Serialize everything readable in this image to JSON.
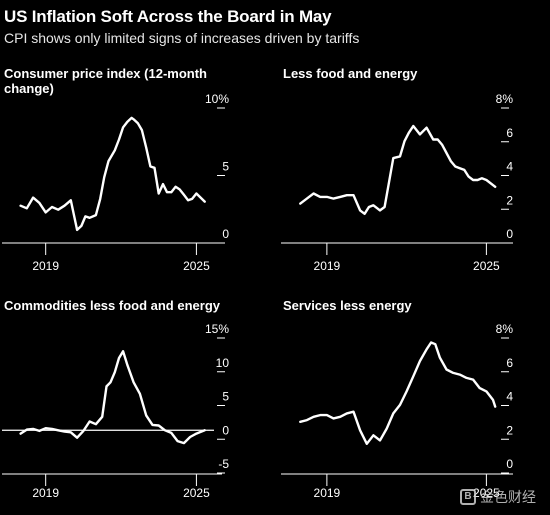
{
  "header": {
    "title": "US Inflation Soft Across the Board in May",
    "subtitle": "CPI shows only limited signs of increases driven by tariffs"
  },
  "watermark": {
    "text": "金色财经",
    "logo": "coin-logo-icon"
  },
  "colors": {
    "background": "#000000",
    "line": "#ffffff",
    "text": "#ffffff"
  },
  "chart_data": [
    {
      "type": "line",
      "title": "Consumer price index (12-month change)",
      "title_lines": [
        "Consumer price index (12-month",
        "change)"
      ],
      "x_ticks": [
        "2019",
        "2025"
      ],
      "y_ticks": [
        "10%",
        "5",
        "0"
      ],
      "ylim": [
        0,
        10
      ],
      "zero_line": false,
      "series": [
        {
          "name": "",
          "x": [
            2018.0,
            2018.25,
            2018.5,
            2018.75,
            2019.0,
            2019.25,
            2019.5,
            2019.75,
            2020.0,
            2020.25,
            2020.42,
            2020.58,
            2020.75,
            2021.0,
            2021.17,
            2021.33,
            2021.5,
            2021.75,
            2021.92,
            2022.08,
            2022.25,
            2022.42,
            2022.5,
            2022.67,
            2022.83,
            2023.0,
            2023.17,
            2023.33,
            2023.5,
            2023.67,
            2023.83,
            2024.0,
            2024.17,
            2024.33,
            2024.5,
            2024.67,
            2024.83,
            2025.0,
            2025.33
          ],
          "values": [
            2.1,
            1.9,
            2.7,
            2.3,
            1.6,
            2.0,
            1.8,
            2.1,
            2.5,
            0.3,
            0.6,
            1.3,
            1.2,
            1.4,
            2.6,
            4.2,
            5.4,
            6.2,
            7.0,
            7.9,
            8.3,
            8.6,
            8.5,
            8.2,
            7.7,
            6.4,
            5.0,
            4.9,
            3.0,
            3.7,
            3.1,
            3.1,
            3.5,
            3.3,
            2.9,
            2.5,
            2.6,
            3.0,
            2.4
          ]
        }
      ]
    },
    {
      "type": "line",
      "title": "Less food and energy",
      "title_lines": [
        "Less food and energy"
      ],
      "x_ticks": [
        "2019",
        "2025"
      ],
      "y_ticks": [
        "8%",
        "6",
        "4",
        "2",
        "0"
      ],
      "ylim": [
        0,
        8
      ],
      "zero_line": false,
      "series": [
        {
          "name": "",
          "x": [
            2018.0,
            2018.25,
            2018.5,
            2018.75,
            2019.0,
            2019.25,
            2019.5,
            2019.75,
            2020.0,
            2020.25,
            2020.42,
            2020.58,
            2020.75,
            2021.0,
            2021.17,
            2021.33,
            2021.5,
            2021.75,
            2021.92,
            2022.08,
            2022.25,
            2022.5,
            2022.75,
            2023.0,
            2023.17,
            2023.33,
            2023.5,
            2023.67,
            2023.83,
            2024.0,
            2024.17,
            2024.33,
            2024.5,
            2024.67,
            2024.83,
            2025.0,
            2025.33
          ],
          "values": [
            1.8,
            2.1,
            2.4,
            2.2,
            2.2,
            2.1,
            2.2,
            2.3,
            2.3,
            1.4,
            1.2,
            1.6,
            1.7,
            1.4,
            1.6,
            3.0,
            4.5,
            4.6,
            5.5,
            6.0,
            6.4,
            5.9,
            6.3,
            5.6,
            5.6,
            5.3,
            4.8,
            4.3,
            4.0,
            3.9,
            3.8,
            3.4,
            3.2,
            3.2,
            3.3,
            3.2,
            2.8
          ]
        }
      ]
    },
    {
      "type": "line",
      "title": "Commodities less food and energy",
      "title_lines": [
        "Commodities less food and energy"
      ],
      "x_ticks": [
        "2019",
        "2025"
      ],
      "y_ticks": [
        "15%",
        "10",
        "5",
        "0",
        "-5"
      ],
      "ylim": [
        -5,
        15
      ],
      "zero_line": true,
      "series": [
        {
          "name": "",
          "x": [
            2018.0,
            2018.25,
            2018.5,
            2018.75,
            2019.0,
            2019.25,
            2019.5,
            2019.75,
            2020.0,
            2020.25,
            2020.5,
            2020.75,
            2021.0,
            2021.25,
            2021.42,
            2021.58,
            2021.75,
            2021.92,
            2022.08,
            2022.25,
            2022.5,
            2022.75,
            2023.0,
            2023.25,
            2023.5,
            2023.75,
            2024.0,
            2024.25,
            2024.5,
            2024.75,
            2025.0,
            2025.33
          ],
          "values": [
            -0.5,
            0.1,
            0.2,
            -0.1,
            0.3,
            0.2,
            0.0,
            -0.2,
            -0.3,
            -1.1,
            -0.1,
            1.3,
            0.9,
            2.0,
            6.5,
            7.1,
            8.6,
            10.7,
            11.7,
            9.7,
            7.1,
            5.4,
            2.2,
            0.8,
            0.7,
            0.0,
            -0.4,
            -1.6,
            -1.9,
            -1.0,
            -0.5,
            0.0
          ]
        }
      ]
    },
    {
      "type": "line",
      "title": "Services less energy",
      "title_lines": [
        "Services less energy"
      ],
      "x_ticks": [
        "2019",
        "2025"
      ],
      "y_ticks": [
        "8%",
        "6",
        "4",
        "2",
        "0"
      ],
      "ylim": [
        0,
        8
      ],
      "zero_line": false,
      "series": [
        {
          "name": "",
          "x": [
            2018.0,
            2018.25,
            2018.5,
            2018.75,
            2019.0,
            2019.25,
            2019.5,
            2019.75,
            2020.0,
            2020.25,
            2020.5,
            2020.75,
            2021.0,
            2021.25,
            2021.5,
            2021.75,
            2022.0,
            2022.25,
            2022.5,
            2022.75,
            2022.92,
            2023.08,
            2023.25,
            2023.5,
            2023.75,
            2024.0,
            2024.25,
            2024.5,
            2024.75,
            2025.0,
            2025.25,
            2025.33
          ],
          "values": [
            2.5,
            2.6,
            2.8,
            2.9,
            2.9,
            2.7,
            2.8,
            3.0,
            3.1,
            2.0,
            1.2,
            1.7,
            1.4,
            2.1,
            3.0,
            3.5,
            4.3,
            5.2,
            6.1,
            6.8,
            7.2,
            7.1,
            6.3,
            5.6,
            5.4,
            5.3,
            5.1,
            5.0,
            4.5,
            4.3,
            3.8,
            3.4
          ]
        }
      ]
    }
  ]
}
